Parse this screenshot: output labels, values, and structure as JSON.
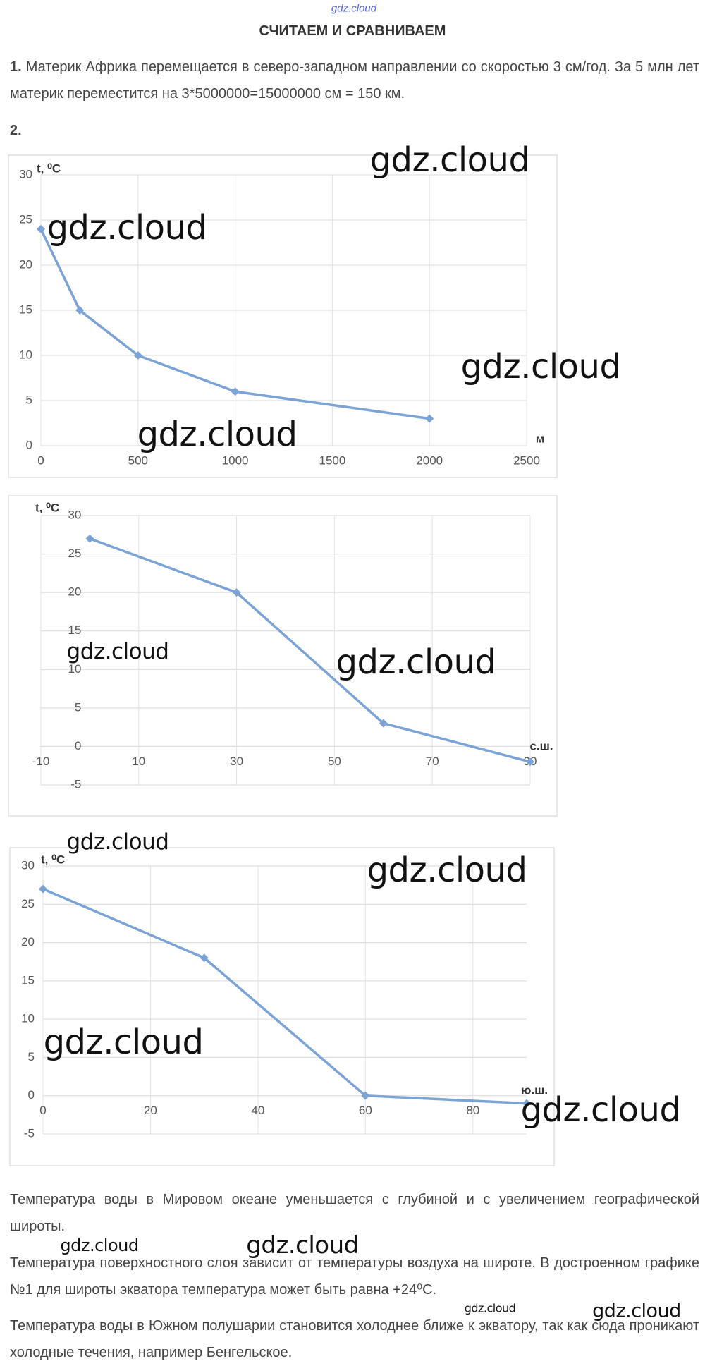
{
  "header": {
    "watermark": "gdz.cloud",
    "title": "СЧИТАЕМ И СРАВНИВАЕМ"
  },
  "task1": {
    "number": "1.",
    "text": "Материк Африка перемещается в северо-западном направлении со скоростью 3 см/год. За 5 млн лет материк переместится на 3*5000000=15000000 см = 150 км."
  },
  "task2": {
    "number": "2."
  },
  "chart_data": [
    {
      "type": "line",
      "ylabel": "t, ⁰C",
      "xlabel": "м",
      "color": "#7ba3d6",
      "grid": true,
      "x": [
        0,
        200,
        500,
        1000,
        2000
      ],
      "values": [
        24,
        15,
        10,
        6,
        3
      ],
      "xlim": [
        0,
        2500
      ],
      "xticks": [
        0,
        500,
        1000,
        1500,
        2000,
        2500
      ],
      "ylim": [
        0,
        30
      ],
      "yticks": [
        0,
        5,
        10,
        15,
        20,
        25,
        30
      ]
    },
    {
      "type": "line",
      "ylabel": "t, ⁰C",
      "xlabel": "с.ш.",
      "color": "#7ba3d6",
      "grid": true,
      "x": [
        0,
        30,
        60,
        90
      ],
      "values": [
        27,
        20,
        3,
        -2
      ],
      "xlim": [
        -10,
        90
      ],
      "xticks": [
        -10,
        10,
        30,
        50,
        70,
        90
      ],
      "ylim": [
        -5,
        30
      ],
      "yticks": [
        -5,
        0,
        5,
        10,
        15,
        20,
        25,
        30
      ]
    },
    {
      "type": "line",
      "ylabel": "t, ⁰C",
      "xlabel": "ю.ш.",
      "color": "#7ba3d6",
      "grid": true,
      "x": [
        0,
        30,
        60,
        90
      ],
      "values": [
        27,
        18,
        0,
        -1
      ],
      "xlim": [
        0,
        90
      ],
      "xticks": [
        0,
        20,
        40,
        60,
        80
      ],
      "ylim": [
        -5,
        30
      ],
      "yticks": [
        -5,
        0,
        5,
        10,
        15,
        20,
        25,
        30
      ]
    }
  ],
  "conclusions": [
    "Температура воды в Мировом океане уменьшается с глубиной и с увеличением географической широты.",
    "Температура поверхностного слоя зависит от температуры воздуха на широте. В достроенном графике №1 для широты экватора температура может быть равна +24⁰С.",
    "Температура воды в Южном полушарии становится холоднее ближе к экватору, так как сюда проникают холодные течения, например Бенгельское."
  ],
  "watermarks": [
    "gdz.cloud",
    "gdz.cloud",
    "gdz.cloud",
    "gdz.cloud",
    "gdz.cloud",
    "gdz.cloud",
    "gdz.cloud",
    "gdz.cloud",
    "gdz.cloud",
    "gdz.cloud",
    "gdz.cloud",
    "gdz.cloud",
    "gdz.cloud",
    "gdz.cloud"
  ]
}
